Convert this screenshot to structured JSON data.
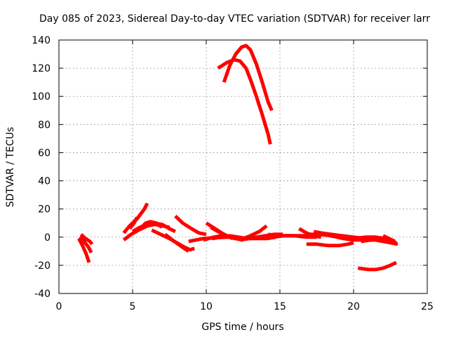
{
  "chart_data": {
    "type": "line",
    "title": "Day 085 of 2023, Sidereal Day-to-day VTEC variation (SDTVAR) for receiver larr",
    "xlabel": "GPS time / hours",
    "ylabel": "SDTVAR / TECUs",
    "xlim": [
      0,
      25
    ],
    "ylim": [
      -40,
      140
    ],
    "x_ticks": [
      0,
      5,
      10,
      15,
      20,
      25
    ],
    "y_ticks": [
      -40,
      -20,
      0,
      20,
      40,
      60,
      80,
      100,
      120,
      140
    ],
    "grid": true,
    "color": "#ff0000",
    "series": [
      {
        "points": [
          [
            1.35,
            -1
          ],
          [
            1.6,
            -6
          ],
          [
            1.85,
            -12
          ],
          [
            2.05,
            -18
          ]
        ]
      },
      {
        "points": [
          [
            1.4,
            0
          ],
          [
            1.7,
            -3
          ],
          [
            2.0,
            -7
          ],
          [
            2.2,
            -11
          ]
        ]
      },
      {
        "points": [
          [
            1.5,
            2
          ],
          [
            1.8,
            -1
          ],
          [
            2.1,
            -3
          ],
          [
            2.25,
            -5
          ]
        ]
      },
      {
        "points": [
          [
            4.4,
            -2
          ],
          [
            4.9,
            2
          ],
          [
            5.4,
            5
          ],
          [
            6.0,
            8
          ],
          [
            6.5,
            9
          ],
          [
            7.0,
            8
          ],
          [
            7.5,
            7
          ]
        ]
      },
      {
        "points": [
          [
            4.4,
            3
          ],
          [
            4.8,
            8
          ],
          [
            5.3,
            13
          ],
          [
            5.8,
            20
          ],
          [
            6.0,
            24
          ]
        ]
      },
      {
        "points": [
          [
            4.8,
            6
          ],
          [
            5.1,
            10
          ],
          [
            5.3,
            14
          ]
        ]
      },
      {
        "points": [
          [
            5.0,
            4
          ],
          [
            5.5,
            7
          ],
          [
            6.0,
            9
          ],
          [
            6.5,
            10
          ],
          [
            7.0,
            9
          ],
          [
            7.5,
            6
          ],
          [
            7.9,
            4
          ]
        ]
      },
      {
        "points": [
          [
            5.5,
            6
          ],
          [
            5.9,
            10
          ],
          [
            6.2,
            11
          ],
          [
            6.6,
            10
          ],
          [
            7.0,
            7
          ]
        ]
      },
      {
        "points": [
          [
            6.3,
            5
          ],
          [
            6.9,
            2
          ],
          [
            7.5,
            -1
          ],
          [
            8.0,
            -4
          ],
          [
            8.5,
            -7
          ],
          [
            8.9,
            -9
          ],
          [
            9.2,
            -8
          ]
        ]
      },
      {
        "points": [
          [
            7.2,
            2
          ],
          [
            7.7,
            -2
          ],
          [
            8.1,
            -5
          ],
          [
            8.5,
            -8
          ],
          [
            8.8,
            -10
          ]
        ]
      },
      {
        "points": [
          [
            7.9,
            15
          ],
          [
            8.4,
            10
          ],
          [
            9.0,
            6
          ],
          [
            9.5,
            3
          ],
          [
            10.0,
            2
          ]
        ]
      },
      {
        "points": [
          [
            8.8,
            -3
          ],
          [
            9.3,
            -2
          ],
          [
            9.8,
            -1
          ],
          [
            10.5,
            -0.5
          ],
          [
            11.5,
            0
          ]
        ]
      },
      {
        "points": [
          [
            9.8,
            -2
          ],
          [
            10.5,
            0
          ],
          [
            11.0,
            1
          ],
          [
            11.5,
            0
          ],
          [
            12.0,
            -1
          ],
          [
            12.5,
            -2
          ]
        ]
      },
      {
        "points": [
          [
            10.0,
            10
          ],
          [
            10.6,
            6
          ],
          [
            11.2,
            2
          ],
          [
            11.8,
            -1
          ]
        ]
      },
      {
        "points": [
          [
            10.3,
            7
          ],
          [
            10.8,
            4
          ],
          [
            11.4,
            1
          ],
          [
            12.0,
            -1
          ],
          [
            12.5,
            -2
          ]
        ]
      },
      {
        "points": [
          [
            10.4,
            -1
          ],
          [
            11.0,
            0
          ],
          [
            11.6,
            1
          ],
          [
            12.2,
            0
          ],
          [
            12.8,
            -1
          ]
        ]
      },
      {
        "points": [
          [
            12.3,
            -2
          ],
          [
            12.9,
            -1
          ],
          [
            13.5,
            -1
          ],
          [
            14.1,
            -1
          ],
          [
            14.7,
            0
          ]
        ]
      },
      {
        "points": [
          [
            12.5,
            -1
          ],
          [
            13.0,
            1
          ],
          [
            13.6,
            4
          ],
          [
            14.1,
            8
          ]
        ]
      },
      {
        "points": [
          [
            12.8,
            -1
          ],
          [
            13.4,
            0
          ],
          [
            14.0,
            1
          ],
          [
            14.6,
            2
          ],
          [
            15.2,
            2
          ]
        ]
      },
      {
        "points": [
          [
            14.2,
            2
          ],
          [
            15.0,
            1
          ],
          [
            15.8,
            1
          ],
          [
            16.5,
            1
          ],
          [
            17.2,
            1
          ]
        ]
      },
      {
        "points": [
          [
            14.5,
            0
          ],
          [
            15.3,
            1
          ],
          [
            16.0,
            1
          ],
          [
            16.8,
            0
          ],
          [
            17.5,
            0
          ]
        ]
      },
      {
        "points": [
          [
            16.3,
            6
          ],
          [
            16.8,
            3
          ],
          [
            17.3,
            1
          ],
          [
            17.8,
            0
          ]
        ]
      },
      {
        "points": [
          [
            16.8,
            -5
          ],
          [
            17.5,
            -5
          ],
          [
            18.3,
            -6
          ],
          [
            19.0,
            -6
          ],
          [
            19.6,
            -5
          ],
          [
            20.0,
            -4
          ]
        ]
      },
      {
        "points": [
          [
            17.0,
            2
          ],
          [
            17.7,
            2
          ],
          [
            18.5,
            1
          ],
          [
            19.2,
            1
          ],
          [
            20.0,
            0
          ],
          [
            20.8,
            -1
          ],
          [
            21.5,
            -1
          ]
        ]
      },
      {
        "points": [
          [
            17.3,
            4
          ],
          [
            17.8,
            3
          ],
          [
            18.5,
            2
          ],
          [
            19.2,
            1
          ],
          [
            20.0,
            0
          ],
          [
            20.7,
            -1
          ]
        ]
      },
      {
        "points": [
          [
            17.8,
            3
          ],
          [
            18.4,
            1
          ],
          [
            19.0,
            0
          ],
          [
            19.6,
            -1
          ],
          [
            20.2,
            -2
          ]
        ]
      },
      {
        "points": [
          [
            18.5,
            1
          ],
          [
            19.3,
            -1
          ],
          [
            20.0,
            -2
          ],
          [
            20.7,
            -2
          ],
          [
            21.4,
            -2
          ]
        ]
      },
      {
        "points": [
          [
            20.0,
            -1
          ],
          [
            20.8,
            0
          ],
          [
            21.5,
            0
          ],
          [
            22.2,
            -1
          ],
          [
            22.8,
            -3
          ]
        ]
      },
      {
        "points": [
          [
            20.5,
            -3
          ],
          [
            21.2,
            -2
          ],
          [
            21.9,
            -2
          ],
          [
            22.4,
            -2
          ],
          [
            22.9,
            -4
          ]
        ]
      },
      {
        "points": [
          [
            21.5,
            -2
          ],
          [
            22.0,
            -3
          ],
          [
            22.5,
            -4
          ],
          [
            23.0,
            -5
          ]
        ]
      },
      {
        "points": [
          [
            22.0,
            1
          ],
          [
            22.4,
            -1
          ],
          [
            22.8,
            -3
          ]
        ]
      },
      {
        "points": [
          [
            20.3,
            -22
          ],
          [
            21.0,
            -23
          ],
          [
            21.5,
            -23
          ],
          [
            22.0,
            -22
          ],
          [
            22.5,
            -20
          ],
          [
            22.9,
            -18
          ]
        ]
      },
      {
        "points": [
          [
            10.8,
            120
          ],
          [
            11.4,
            124
          ],
          [
            11.9,
            126
          ],
          [
            12.3,
            125
          ],
          [
            12.7,
            120
          ],
          [
            13.0,
            112
          ],
          [
            13.4,
            100
          ],
          [
            13.8,
            87
          ],
          [
            14.2,
            73
          ],
          [
            14.35,
            66
          ]
        ]
      },
      {
        "points": [
          [
            11.2,
            110
          ],
          [
            11.6,
            122
          ],
          [
            12.0,
            130
          ],
          [
            12.4,
            135
          ],
          [
            12.7,
            136
          ],
          [
            13.0,
            133
          ],
          [
            13.4,
            123
          ],
          [
            13.8,
            110
          ],
          [
            14.2,
            96
          ],
          [
            14.45,
            90
          ]
        ]
      }
    ]
  }
}
